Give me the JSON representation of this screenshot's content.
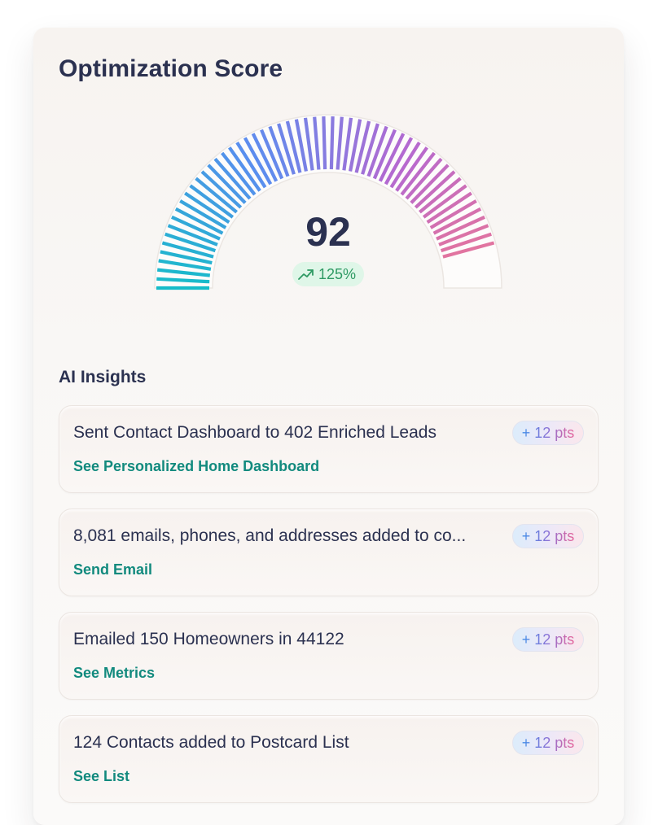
{
  "card": {
    "title": "Optimization Score"
  },
  "gauge": {
    "score": "92",
    "score_fraction": 0.92,
    "trend_label": "125%",
    "trend_icon": "trend-up-arrow-icon",
    "gradient_colors": [
      "#16bcc9",
      "#5b8def",
      "#b569d0",
      "#f07890"
    ]
  },
  "insights": {
    "heading": "AI Insights",
    "items": [
      {
        "text": "Sent Contact Dashboard to 402 Enriched Leads",
        "link": "See Personalized Home Dashboard",
        "points": "+ 12 pts"
      },
      {
        "text": "8,081 emails, phones, and addresses added to co...",
        "link": "Send Email",
        "points": "+ 12 pts"
      },
      {
        "text": "Emailed 150 Homeowners in 44122",
        "link": "See Metrics",
        "points": "+ 12 pts"
      },
      {
        "text": "124 Contacts added to Postcard List",
        "link": "See List",
        "points": "+ 12 pts"
      }
    ]
  }
}
